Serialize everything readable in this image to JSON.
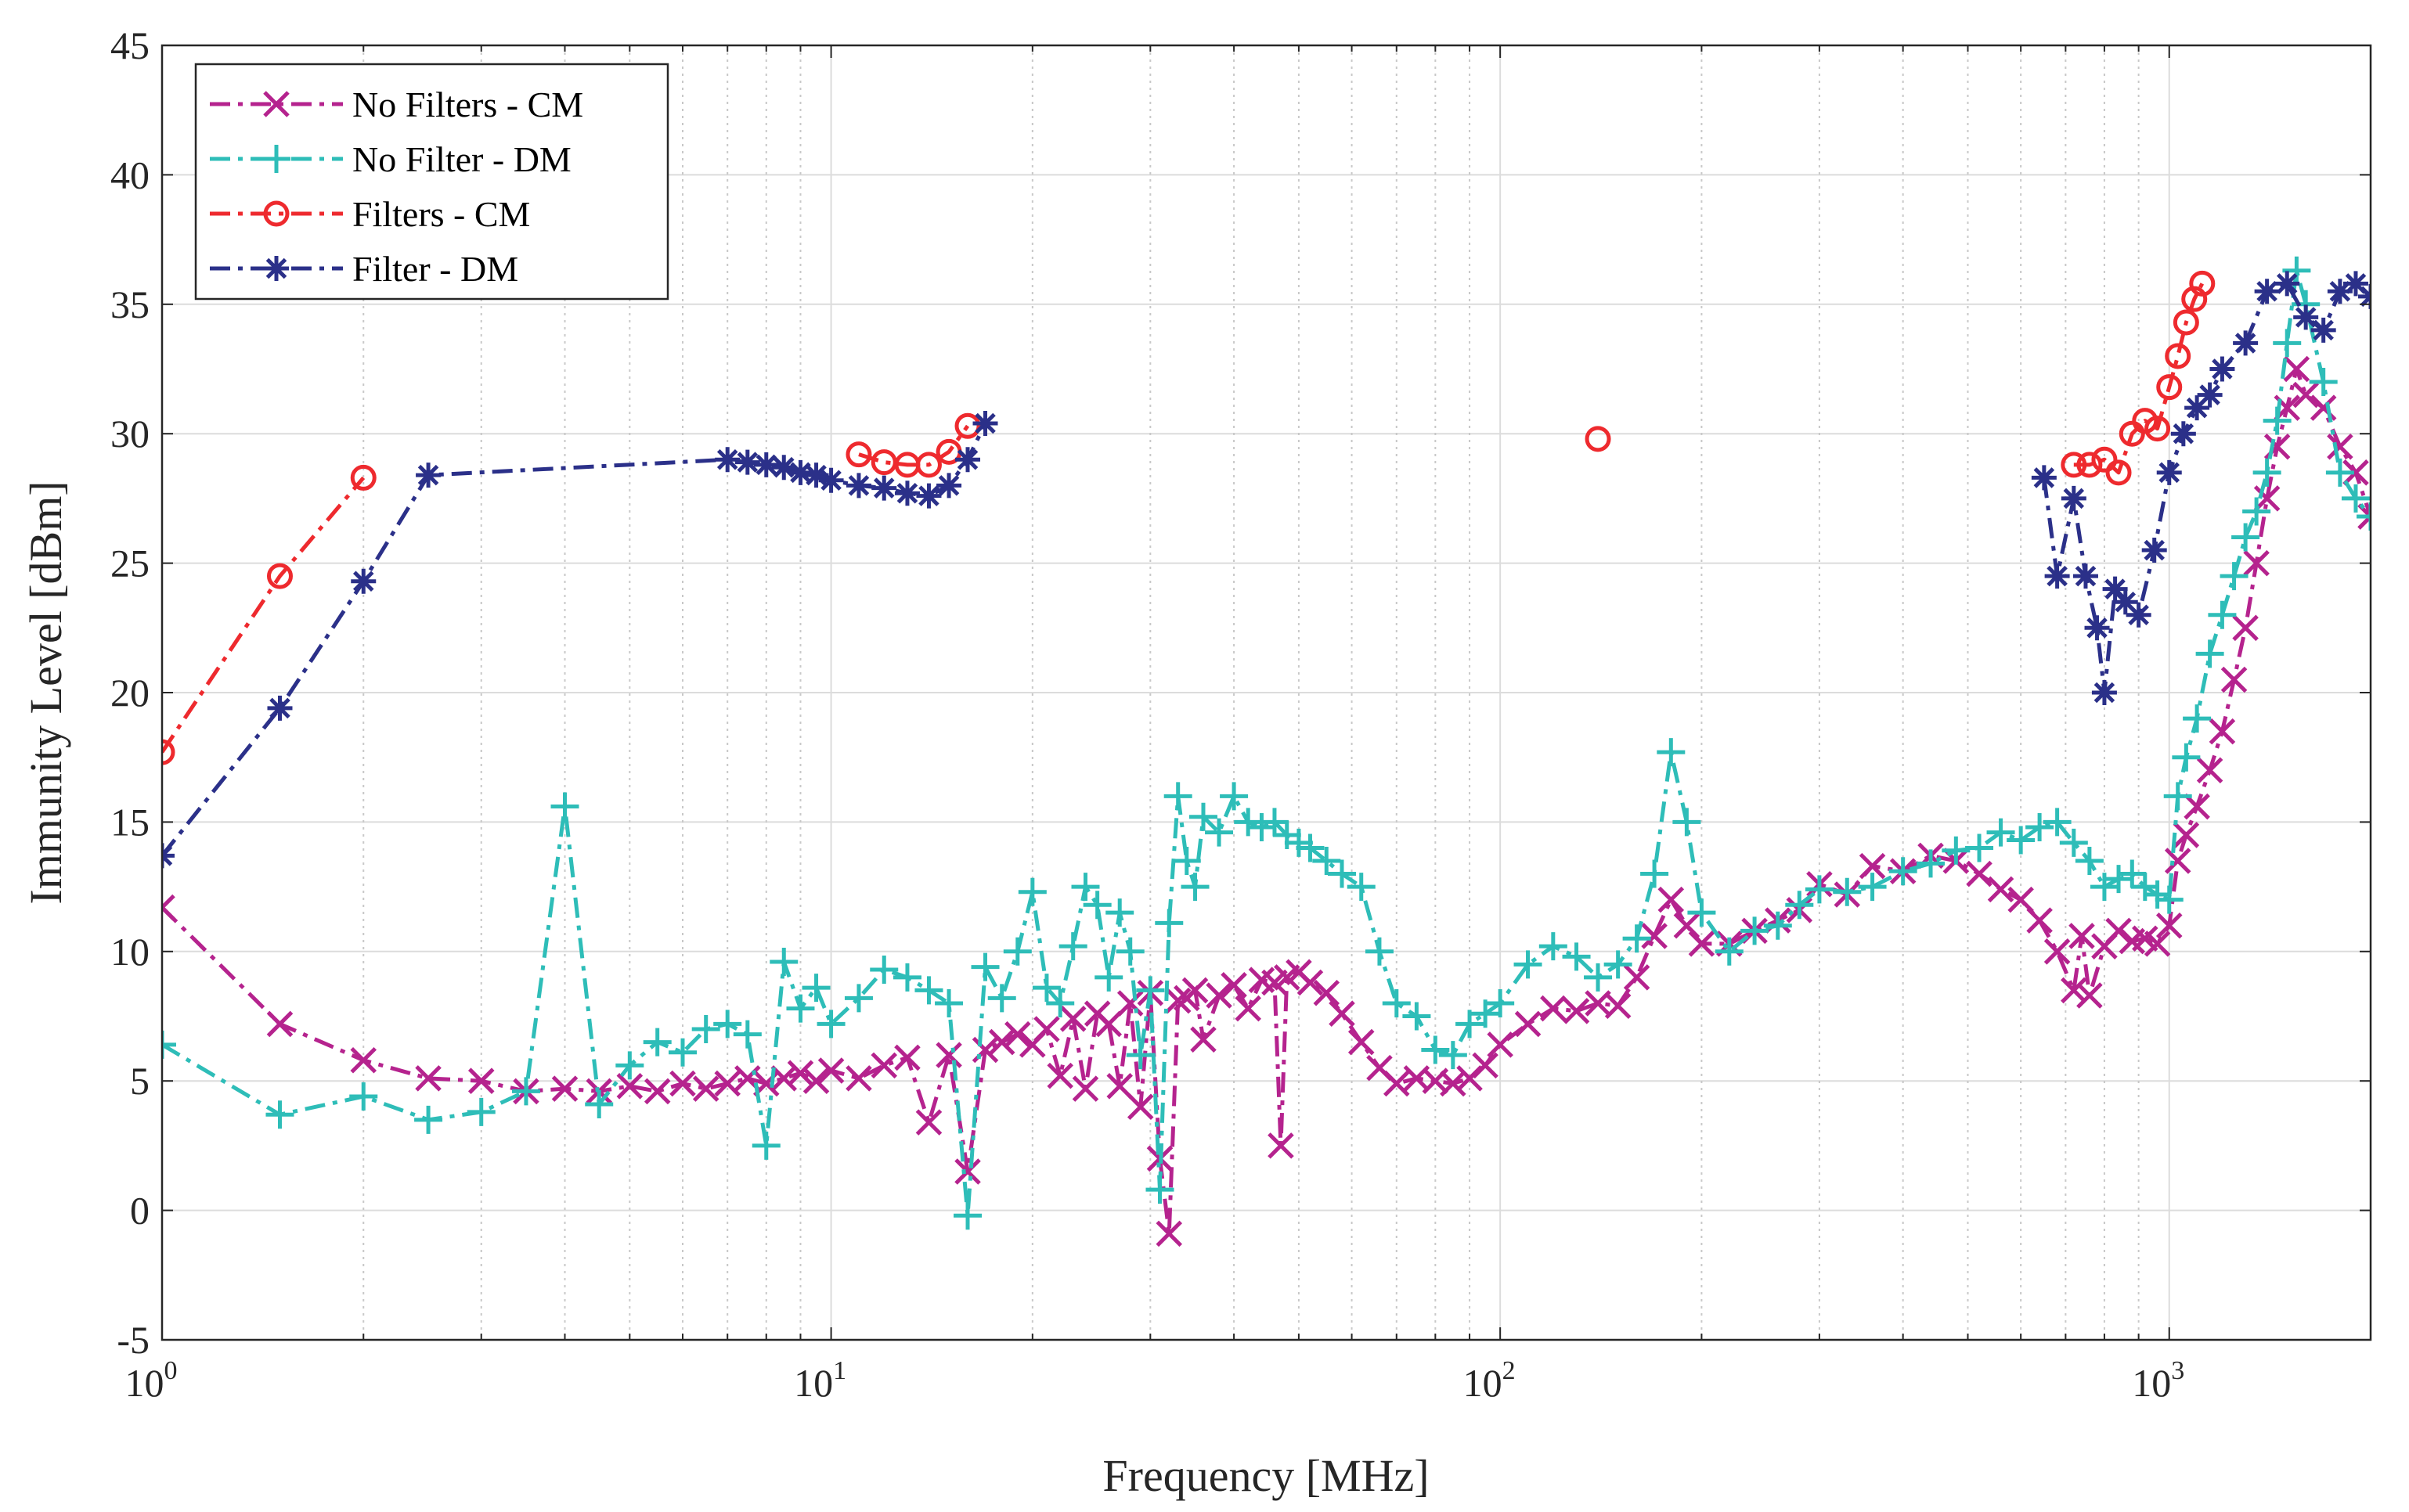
{
  "chart_data": {
    "type": "line",
    "xscale": "log",
    "xlabel": "Frequency [MHz]",
    "ylabel": "Immunity Level [dBm]",
    "xlim": [
      1,
      2000
    ],
    "ylim": [
      -5,
      45
    ],
    "grid": true,
    "legend_position": "top-left",
    "y_ticks": [
      -5,
      0,
      5,
      10,
      15,
      20,
      25,
      30,
      35,
      40,
      45
    ],
    "x_ticks": [
      {
        "base": "10",
        "exp": "0",
        "value": 1
      },
      {
        "base": "10",
        "exp": "1",
        "value": 10
      },
      {
        "base": "10",
        "exp": "2",
        "value": 100
      },
      {
        "base": "10",
        "exp": "3",
        "value": 1000
      }
    ],
    "series": [
      {
        "name": "No Filters - CM",
        "color": "#b5238e",
        "marker": "x",
        "line": "dashdot",
        "x": [
          1,
          1.5,
          2,
          2.5,
          3,
          3.5,
          4,
          4.5,
          5,
          5.5,
          6,
          6.5,
          7,
          7.5,
          8,
          8.5,
          9,
          9.5,
          10,
          11,
          12,
          13,
          14,
          15,
          16,
          17,
          18,
          19,
          20,
          21,
          22,
          23,
          24,
          25,
          26,
          27,
          28,
          29,
          30,
          31,
          32,
          33,
          34,
          35,
          36,
          38,
          40,
          42,
          44,
          46,
          47,
          48,
          50,
          52,
          55,
          58,
          62,
          66,
          70,
          75,
          80,
          85,
          90,
          95,
          100,
          110,
          120,
          130,
          140,
          150,
          160,
          170,
          180,
          190,
          200,
          220,
          240,
          260,
          280,
          300,
          330,
          360,
          400,
          440,
          480,
          520,
          560,
          600,
          640,
          680,
          720,
          740,
          760,
          800,
          840,
          880,
          920,
          960,
          1000,
          1030,
          1060,
          1100,
          1150,
          1200,
          1250,
          1300,
          1350,
          1400,
          1450,
          1500,
          1550,
          1600,
          1700,
          1800,
          1900,
          2000
        ],
        "y": [
          11.7,
          7.2,
          5.8,
          5.1,
          5.0,
          4.6,
          4.7,
          4.6,
          4.8,
          4.6,
          4.9,
          4.7,
          4.9,
          5.1,
          4.9,
          5.1,
          5.3,
          5.0,
          5.4,
          5.1,
          5.6,
          5.9,
          3.4,
          6.0,
          1.5,
          6.2,
          6.5,
          6.8,
          6.4,
          7.0,
          5.2,
          7.4,
          4.7,
          7.6,
          7.2,
          4.8,
          8.0,
          4.0,
          8.4,
          2.0,
          -0.9,
          8.1,
          8.2,
          8.5,
          6.6,
          8.3,
          8.7,
          7.8,
          8.9,
          8.8,
          2.5,
          9.0,
          9.2,
          8.8,
          8.4,
          7.6,
          6.5,
          5.5,
          4.9,
          5.1,
          5.0,
          4.9,
          5.1,
          5.6,
          6.4,
          7.2,
          7.8,
          7.7,
          8.0,
          7.9,
          9.0,
          10.6,
          12.0,
          11.0,
          10.3,
          10.3,
          10.8,
          11.2,
          11.6,
          12.6,
          12.2,
          13.3,
          13.1,
          13.7,
          13.5,
          13.0,
          12.4,
          12.0,
          11.2,
          10.0,
          8.5,
          10.6,
          8.3,
          10.2,
          10.8,
          10.4,
          10.5,
          10.3,
          11.0,
          13.5,
          14.5,
          15.6,
          17.0,
          18.5,
          20.5,
          22.5,
          25.0,
          27.5,
          29.5,
          31.0,
          32.5,
          31.5,
          31.0,
          29.5,
          28.5,
          26.8
        ]
      },
      {
        "name": "No Filter - DM",
        "color": "#2ebdb8",
        "marker": "+",
        "line": "dashdot",
        "x": [
          1,
          1.5,
          2,
          2.5,
          3,
          3.5,
          4,
          4.5,
          5,
          5.5,
          6,
          6.5,
          7,
          7.5,
          8,
          8.5,
          9,
          9.5,
          10,
          11,
          12,
          13,
          14,
          15,
          16,
          17,
          18,
          19,
          20,
          21,
          22,
          23,
          24,
          25,
          26,
          27,
          28,
          29,
          30,
          31,
          32,
          33,
          34,
          35,
          36,
          38,
          40,
          42,
          44,
          46,
          48,
          50,
          52,
          55,
          58,
          62,
          66,
          70,
          75,
          80,
          85,
          90,
          95,
          100,
          110,
          120,
          130,
          140,
          150,
          160,
          170,
          180,
          190,
          200,
          220,
          240,
          260,
          280,
          300,
          330,
          360,
          400,
          440,
          480,
          520,
          560,
          600,
          640,
          680,
          720,
          760,
          800,
          840,
          880,
          920,
          960,
          1000,
          1030,
          1060,
          1100,
          1150,
          1200,
          1250,
          1300,
          1350,
          1400,
          1450,
          1500,
          1550,
          1600,
          1700,
          1800,
          1900,
          2000
        ],
        "y": [
          6.4,
          3.7,
          4.4,
          3.5,
          3.8,
          4.6,
          15.6,
          4.1,
          5.6,
          6.5,
          6.1,
          7.0,
          7.2,
          6.8,
          2.5,
          9.6,
          7.8,
          8.6,
          7.2,
          8.2,
          9.3,
          9.0,
          8.5,
          8.0,
          -0.2,
          9.4,
          8.2,
          10.0,
          12.3,
          8.6,
          8.0,
          10.2,
          12.5,
          11.8,
          9.0,
          11.5,
          10.0,
          6.0,
          8.5,
          0.8,
          11.1,
          16.0,
          13.5,
          12.5,
          15.2,
          14.6,
          16.0,
          15.0,
          14.8,
          15.0,
          14.5,
          14.2,
          14.0,
          13.5,
          13.0,
          12.5,
          10.0,
          8.0,
          7.5,
          6.2,
          6.0,
          7.2,
          7.6,
          8.0,
          9.5,
          10.2,
          9.8,
          9.0,
          9.5,
          10.5,
          13.0,
          17.7,
          15.0,
          11.5,
          10.0,
          10.8,
          11.0,
          11.8,
          12.4,
          12.3,
          12.5,
          13.1,
          13.4,
          13.9,
          14.0,
          14.6,
          14.3,
          14.8,
          15.0,
          14.2,
          13.5,
          12.5,
          12.8,
          13.0,
          12.5,
          12.2,
          12.0,
          16.0,
          17.5,
          19.0,
          21.5,
          23.0,
          24.5,
          26.0,
          27.0,
          28.5,
          30.5,
          33.5,
          36.3,
          35.0,
          32.0,
          28.5,
          27.5,
          26.8
        ]
      },
      {
        "name": "Filters - CM",
        "color": "#ee2a2e",
        "marker": "o",
        "line": "dashdot",
        "x": [
          1,
          1.5,
          2,
          11,
          12,
          13,
          14,
          15,
          16,
          140,
          720,
          760,
          800,
          840,
          880,
          920,
          960,
          1000,
          1030,
          1060,
          1090,
          1120
        ],
        "y": [
          17.7,
          24.5,
          28.3,
          29.2,
          28.9,
          28.8,
          28.8,
          29.3,
          30.3,
          29.8,
          28.8,
          28.8,
          29.0,
          28.5,
          30.0,
          30.5,
          30.2,
          31.8,
          33.0,
          34.3,
          35.2,
          35.8
        ]
      },
      {
        "name": "Filter - DM",
        "color": "#2b3089",
        "marker": "*",
        "line": "dashdot",
        "x": [
          1,
          1.5,
          2,
          2.5,
          7,
          7.5,
          8,
          8.5,
          9,
          9.5,
          10,
          11,
          12,
          13,
          14,
          15,
          16,
          17,
          650,
          680,
          720,
          750,
          780,
          800,
          830,
          860,
          900,
          950,
          1000,
          1050,
          1100,
          1150,
          1200,
          1300,
          1400,
          1500,
          1600,
          1700,
          1800,
          1900,
          2000
        ],
        "y": [
          13.7,
          19.4,
          24.3,
          28.4,
          29.0,
          28.9,
          28.8,
          28.7,
          28.5,
          28.4,
          28.2,
          28.0,
          27.9,
          27.7,
          27.6,
          28.0,
          29.0,
          30.4,
          28.3,
          24.5,
          27.5,
          24.5,
          22.5,
          20.0,
          24.0,
          23.5,
          23.0,
          25.5,
          28.5,
          30.0,
          31.0,
          31.5,
          32.5,
          33.5,
          35.5,
          35.8,
          34.5,
          34.0,
          35.5,
          35.8,
          35.3
        ]
      }
    ]
  }
}
